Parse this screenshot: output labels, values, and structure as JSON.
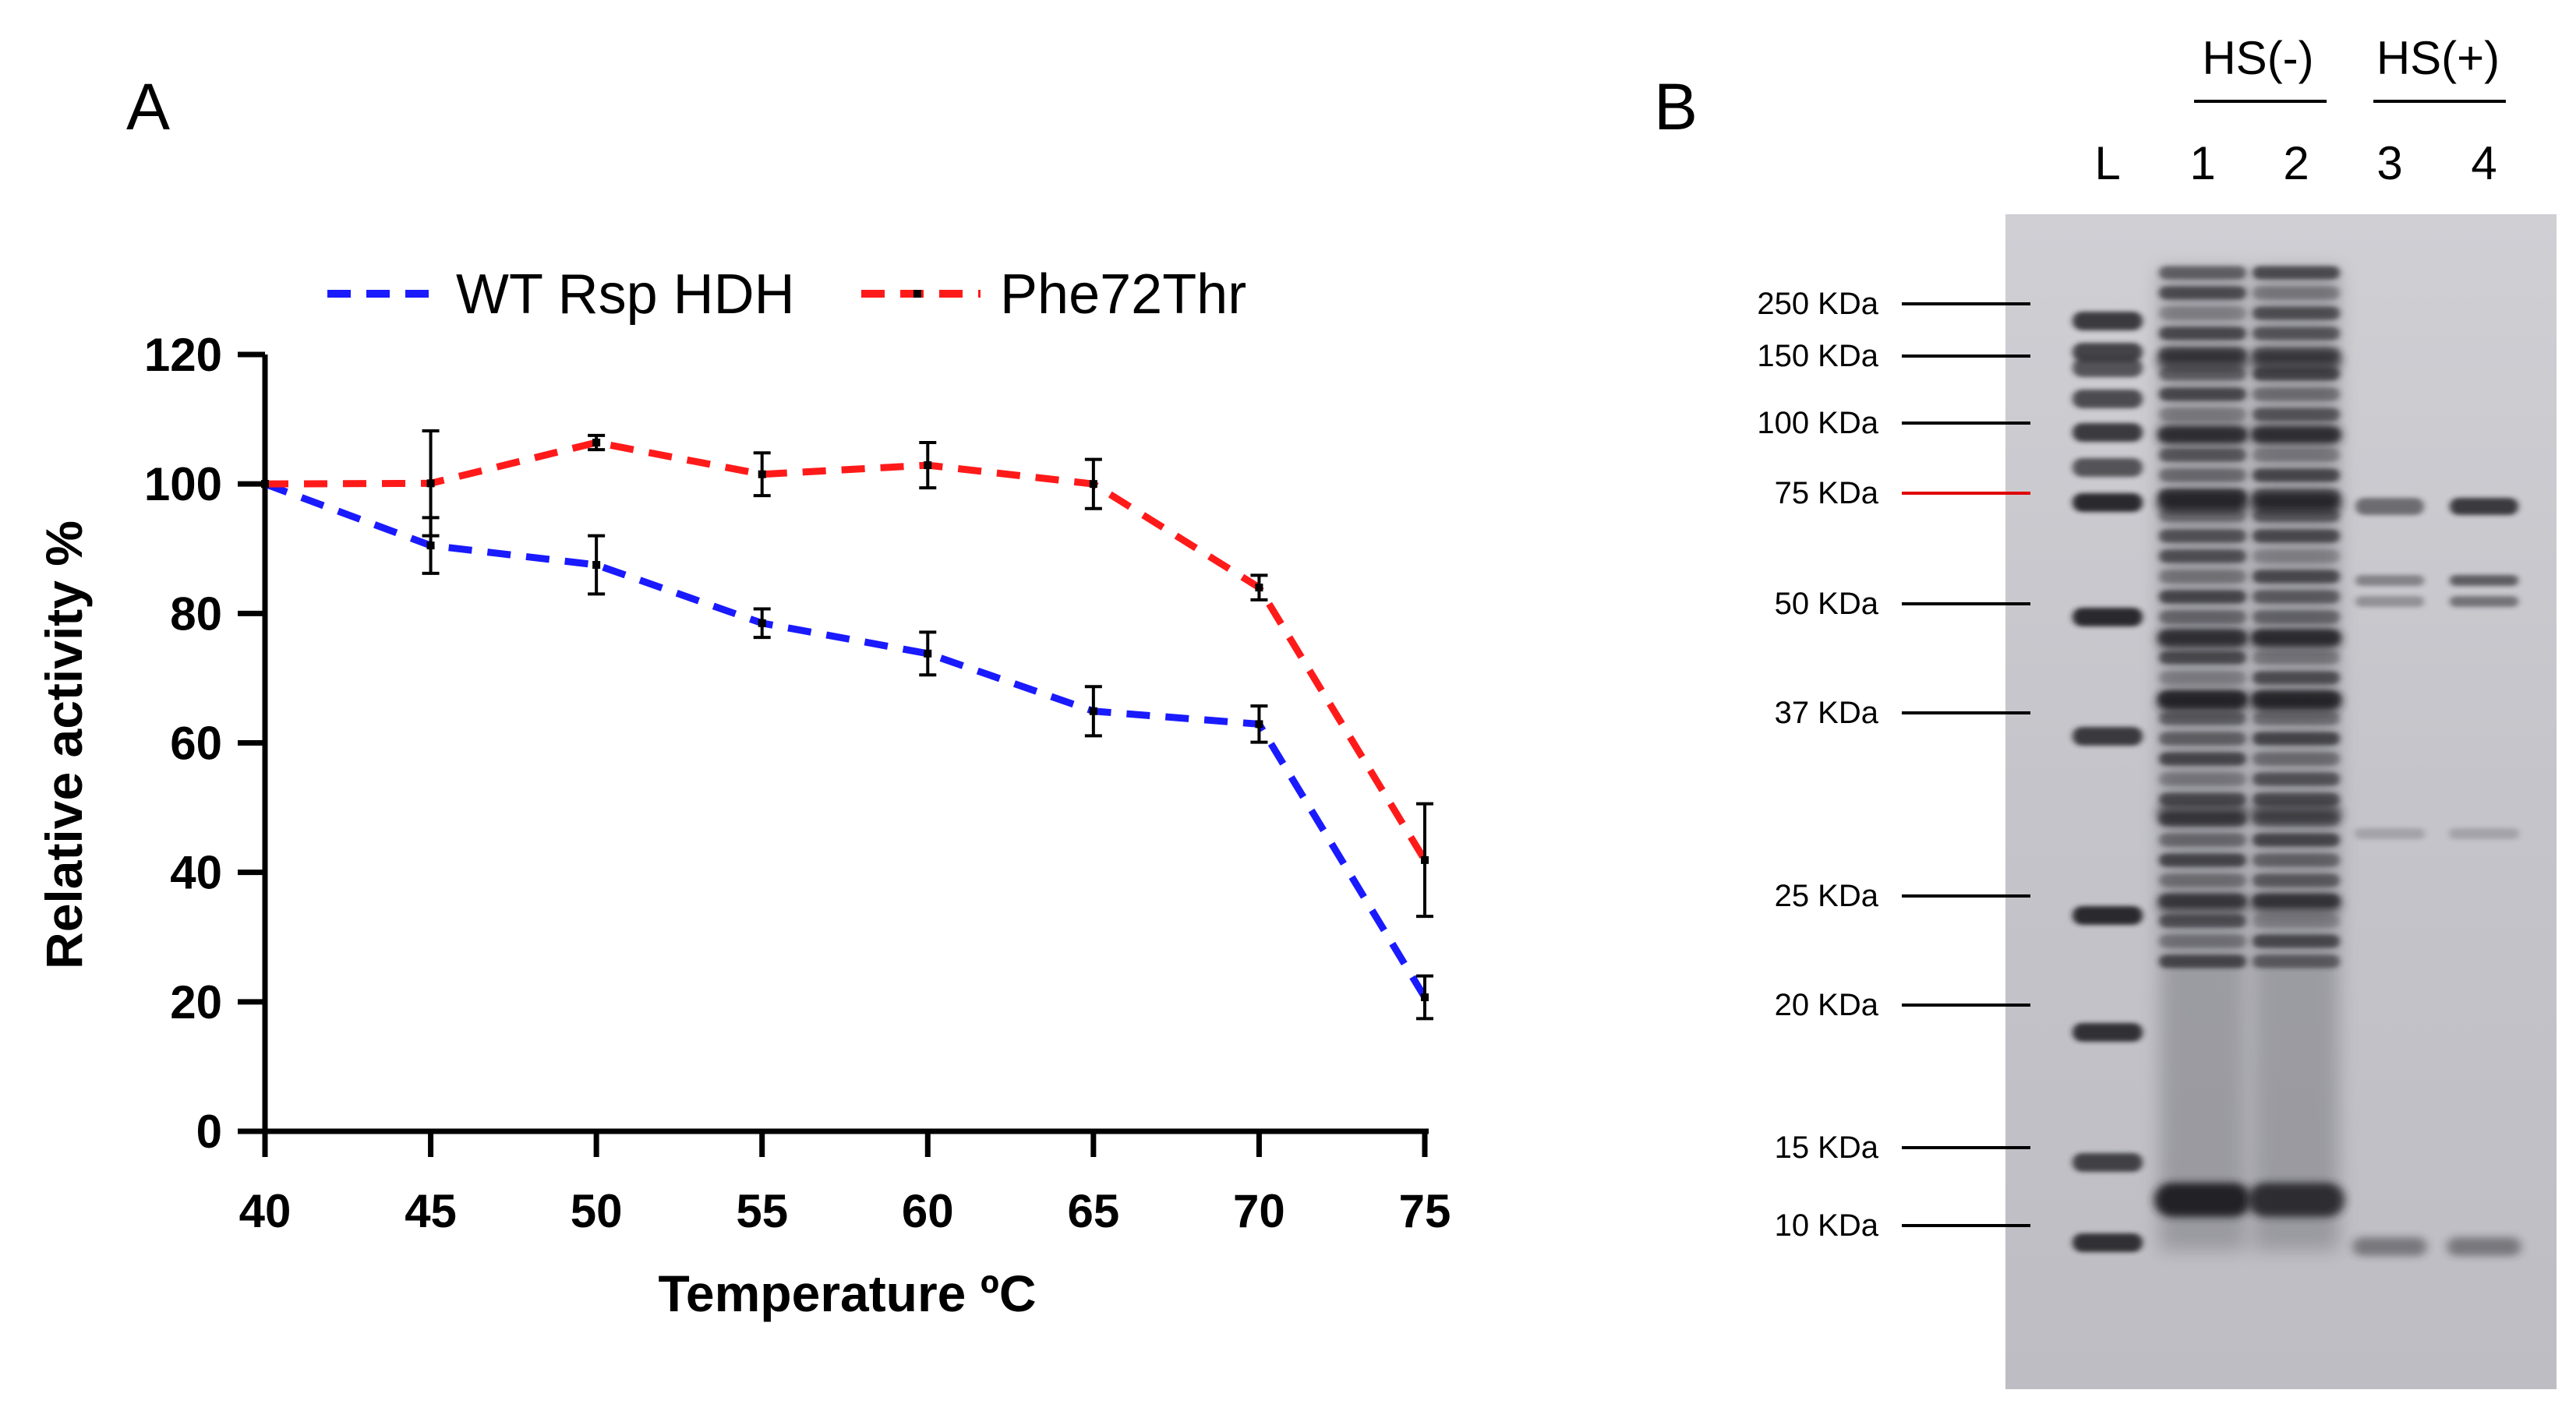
{
  "panels": {
    "a_label": "A",
    "b_label": "B"
  },
  "chart_data": {
    "type": "line",
    "title": "",
    "xlabel": "Temperature ºC",
    "ylabel": "Relative activity %",
    "x": [
      40,
      45,
      50,
      55,
      60,
      65,
      70,
      75
    ],
    "xlim": [
      40,
      75
    ],
    "ylim": [
      0,
      120
    ],
    "yticks": [
      0,
      20,
      40,
      60,
      80,
      100,
      120
    ],
    "grid": false,
    "legend_position": "top",
    "series": [
      {
        "name": "WT Rsp HDH",
        "color": "#1a1aff",
        "line_style": "dashed",
        "values": [
          100,
          90.5,
          87.5,
          78.5,
          73.8,
          64.9,
          62.9,
          20.7
        ],
        "errors": [
          0,
          4.3,
          4.5,
          2.2,
          3.3,
          3.8,
          2.8,
          3.3
        ]
      },
      {
        "name": "Phe72Thr",
        "color": "#ff1a1a",
        "line_style": "dashed",
        "values": [
          100,
          100.1,
          106.4,
          101.5,
          102.9,
          100,
          84,
          41.9
        ],
        "errors": [
          0,
          8.1,
          1.1,
          3.3,
          3.5,
          3.8,
          1.9,
          8.7
        ]
      }
    ]
  },
  "gel": {
    "group_labels": [
      "HS(-)",
      "HS(+)"
    ],
    "lane_labels": [
      "L",
      "1",
      "2",
      "3",
      "4"
    ],
    "markers": [
      {
        "label": "250 KDa",
        "highlight": false
      },
      {
        "label": "150 KDa",
        "highlight": false
      },
      {
        "label": "100 KDa",
        "highlight": false
      },
      {
        "label": "75 KDa",
        "highlight": true
      },
      {
        "label": "50 KDa",
        "highlight": false
      },
      {
        "label": "37 KDa",
        "highlight": false
      },
      {
        "label": "25 KDa",
        "highlight": false
      },
      {
        "label": "20 KDa",
        "highlight": false
      },
      {
        "label": "15 KDa",
        "highlight": false
      },
      {
        "label": "10 KDa",
        "highlight": false
      }
    ],
    "highlight_color": "#e00000",
    "background_color": "#c9c9cf"
  }
}
